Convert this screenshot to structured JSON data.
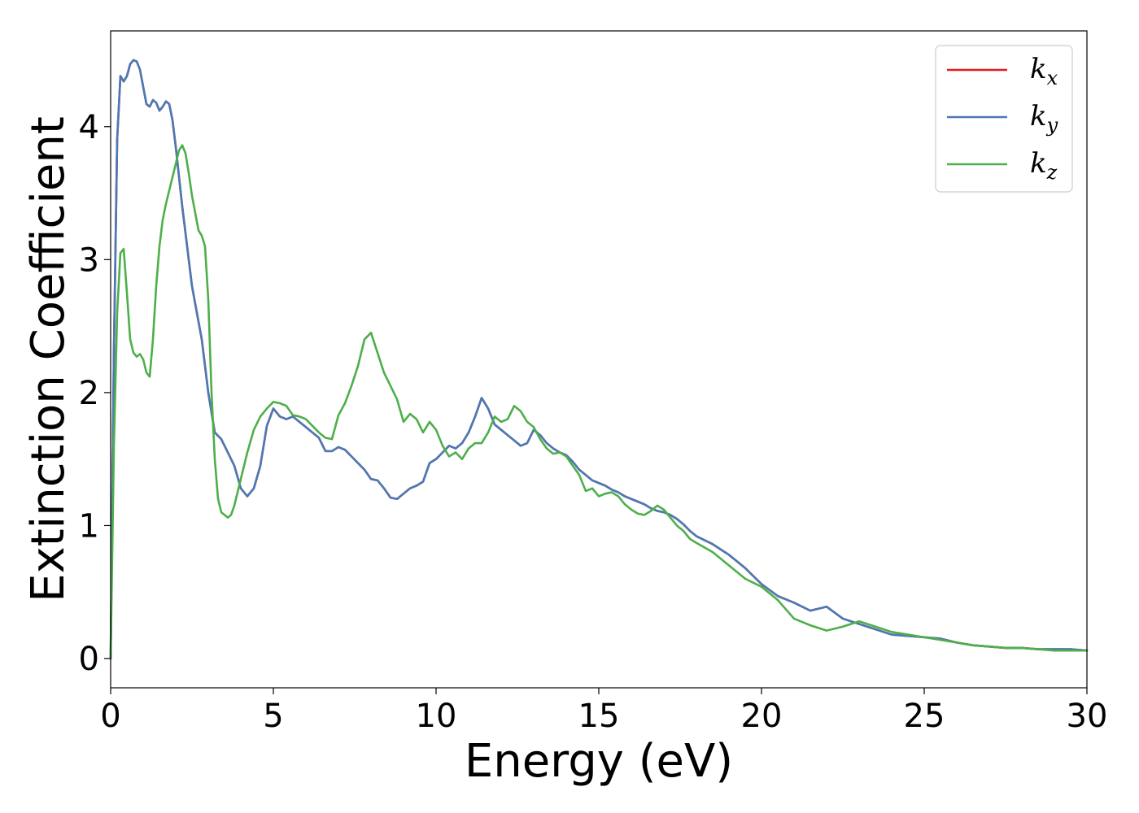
{
  "chart_data": {
    "type": "line",
    "xlabel": "Energy (eV)",
    "ylabel": "Extinction Coefficient",
    "xlim": [
      0,
      30
    ],
    "ylim": [
      -0.22,
      4.72
    ],
    "xticks": [
      0,
      5,
      10,
      15,
      20,
      25,
      30
    ],
    "xtick_labels": [
      "0",
      "5",
      "10",
      "15",
      "20",
      "25",
      "30"
    ],
    "yticks": [
      0,
      1,
      2,
      3,
      4
    ],
    "ytick_labels": [
      "0",
      "1",
      "2",
      "3",
      "4"
    ],
    "grid": false,
    "legend": "top-right",
    "series": [
      {
        "name": "kx",
        "label_main": "k",
        "label_sub": "x",
        "color": "#e41a1c",
        "x": [
          0,
          0.1,
          0.2,
          0.3,
          0.4,
          0.5,
          0.6,
          0.7,
          0.8,
          0.9,
          1.0,
          1.1,
          1.2,
          1.3,
          1.4,
          1.5,
          1.6,
          1.7,
          1.8,
          1.9,
          2.0,
          2.2,
          2.5,
          2.8,
          3.0,
          3.2,
          3.4,
          3.6,
          3.8,
          4.0,
          4.2,
          4.4,
          4.6,
          4.8,
          5.0,
          5.2,
          5.4,
          5.6,
          5.8,
          6.0,
          6.2,
          6.4,
          6.6,
          6.8,
          7.0,
          7.2,
          7.4,
          7.6,
          7.8,
          8.0,
          8.2,
          8.4,
          8.6,
          8.8,
          9.0,
          9.2,
          9.4,
          9.6,
          9.8,
          10.0,
          10.2,
          10.4,
          10.6,
          10.8,
          11.0,
          11.2,
          11.4,
          11.6,
          11.8,
          12.0,
          12.2,
          12.4,
          12.6,
          12.8,
          13.0,
          13.2,
          13.4,
          13.6,
          13.8,
          14.0,
          14.2,
          14.4,
          14.6,
          14.8,
          15.0,
          15.2,
          15.4,
          15.6,
          15.8,
          16.0,
          16.2,
          16.4,
          16.6,
          16.8,
          17.0,
          17.2,
          17.4,
          17.6,
          17.8,
          18.0,
          18.5,
          19.0,
          19.5,
          20.0,
          20.5,
          21.0,
          21.5,
          22.0,
          22.5,
          23.0,
          23.5,
          24.0,
          24.5,
          25.0,
          25.5,
          26.0,
          26.5,
          27.0,
          27.5,
          28.0,
          28.5,
          29.0,
          29.5,
          30.0
        ],
        "y": [
          0,
          2.3,
          3.9,
          4.38,
          4.34,
          4.38,
          4.47,
          4.5,
          4.49,
          4.43,
          4.3,
          4.17,
          4.15,
          4.2,
          4.18,
          4.12,
          4.15,
          4.19,
          4.17,
          4.05,
          3.85,
          3.4,
          2.8,
          2.4,
          2.0,
          1.7,
          1.65,
          1.55,
          1.45,
          1.28,
          1.22,
          1.28,
          1.45,
          1.75,
          1.88,
          1.82,
          1.8,
          1.82,
          1.78,
          1.74,
          1.7,
          1.66,
          1.56,
          1.56,
          1.59,
          1.57,
          1.52,
          1.47,
          1.42,
          1.35,
          1.34,
          1.28,
          1.21,
          1.2,
          1.24,
          1.28,
          1.3,
          1.33,
          1.47,
          1.5,
          1.55,
          1.6,
          1.58,
          1.62,
          1.7,
          1.82,
          1.96,
          1.88,
          1.76,
          1.72,
          1.68,
          1.64,
          1.6,
          1.62,
          1.72,
          1.68,
          1.62,
          1.58,
          1.55,
          1.53,
          1.48,
          1.42,
          1.38,
          1.34,
          1.32,
          1.3,
          1.27,
          1.25,
          1.22,
          1.2,
          1.18,
          1.16,
          1.13,
          1.11,
          1.1,
          1.08,
          1.05,
          1.01,
          0.96,
          0.92,
          0.86,
          0.78,
          0.68,
          0.56,
          0.47,
          0.42,
          0.36,
          0.39,
          0.3,
          0.26,
          0.22,
          0.18,
          0.17,
          0.16,
          0.15,
          0.12,
          0.1,
          0.09,
          0.08,
          0.08,
          0.07,
          0.07,
          0.07,
          0.06
        ]
      },
      {
        "name": "ky",
        "label_main": "k",
        "label_sub": "y",
        "color": "#4a7ab5",
        "x": [
          0,
          0.1,
          0.2,
          0.3,
          0.4,
          0.5,
          0.6,
          0.7,
          0.8,
          0.9,
          1.0,
          1.1,
          1.2,
          1.3,
          1.4,
          1.5,
          1.6,
          1.7,
          1.8,
          1.9,
          2.0,
          2.2,
          2.5,
          2.8,
          3.0,
          3.2,
          3.4,
          3.6,
          3.8,
          4.0,
          4.2,
          4.4,
          4.6,
          4.8,
          5.0,
          5.2,
          5.4,
          5.6,
          5.8,
          6.0,
          6.2,
          6.4,
          6.6,
          6.8,
          7.0,
          7.2,
          7.4,
          7.6,
          7.8,
          8.0,
          8.2,
          8.4,
          8.6,
          8.8,
          9.0,
          9.2,
          9.4,
          9.6,
          9.8,
          10.0,
          10.2,
          10.4,
          10.6,
          10.8,
          11.0,
          11.2,
          11.4,
          11.6,
          11.8,
          12.0,
          12.2,
          12.4,
          12.6,
          12.8,
          13.0,
          13.2,
          13.4,
          13.6,
          13.8,
          14.0,
          14.2,
          14.4,
          14.6,
          14.8,
          15.0,
          15.2,
          15.4,
          15.6,
          15.8,
          16.0,
          16.2,
          16.4,
          16.6,
          16.8,
          17.0,
          17.2,
          17.4,
          17.6,
          17.8,
          18.0,
          18.5,
          19.0,
          19.5,
          20.0,
          20.5,
          21.0,
          21.5,
          22.0,
          22.5,
          23.0,
          23.5,
          24.0,
          24.5,
          25.0,
          25.5,
          26.0,
          26.5,
          27.0,
          27.5,
          28.0,
          28.5,
          29.0,
          29.5,
          30.0
        ],
        "y": [
          0,
          2.3,
          3.9,
          4.38,
          4.34,
          4.38,
          4.47,
          4.5,
          4.49,
          4.43,
          4.3,
          4.17,
          4.15,
          4.2,
          4.18,
          4.12,
          4.15,
          4.19,
          4.17,
          4.05,
          3.85,
          3.4,
          2.8,
          2.4,
          2.0,
          1.7,
          1.65,
          1.55,
          1.45,
          1.28,
          1.22,
          1.28,
          1.45,
          1.75,
          1.88,
          1.82,
          1.8,
          1.82,
          1.78,
          1.74,
          1.7,
          1.66,
          1.56,
          1.56,
          1.59,
          1.57,
          1.52,
          1.47,
          1.42,
          1.35,
          1.34,
          1.28,
          1.21,
          1.2,
          1.24,
          1.28,
          1.3,
          1.33,
          1.47,
          1.5,
          1.55,
          1.6,
          1.58,
          1.62,
          1.7,
          1.82,
          1.96,
          1.88,
          1.76,
          1.72,
          1.68,
          1.64,
          1.6,
          1.62,
          1.72,
          1.68,
          1.62,
          1.58,
          1.55,
          1.53,
          1.48,
          1.42,
          1.38,
          1.34,
          1.32,
          1.3,
          1.27,
          1.25,
          1.22,
          1.2,
          1.18,
          1.16,
          1.13,
          1.11,
          1.1,
          1.08,
          1.05,
          1.01,
          0.96,
          0.92,
          0.86,
          0.78,
          0.68,
          0.56,
          0.47,
          0.42,
          0.36,
          0.39,
          0.3,
          0.26,
          0.22,
          0.18,
          0.17,
          0.16,
          0.15,
          0.12,
          0.1,
          0.09,
          0.08,
          0.08,
          0.07,
          0.07,
          0.07,
          0.06
        ]
      },
      {
        "name": "kz",
        "label_main": "k",
        "label_sub": "z",
        "color": "#4daf4a",
        "x": [
          0,
          0.1,
          0.2,
          0.3,
          0.4,
          0.5,
          0.6,
          0.7,
          0.8,
          0.9,
          1.0,
          1.1,
          1.2,
          1.3,
          1.4,
          1.5,
          1.6,
          1.7,
          1.8,
          1.9,
          2.0,
          2.1,
          2.2,
          2.3,
          2.4,
          2.5,
          2.6,
          2.7,
          2.8,
          2.9,
          3.0,
          3.1,
          3.2,
          3.3,
          3.4,
          3.5,
          3.6,
          3.7,
          3.8,
          4.0,
          4.2,
          4.4,
          4.6,
          4.8,
          5.0,
          5.2,
          5.4,
          5.6,
          5.8,
          6.0,
          6.2,
          6.4,
          6.6,
          6.8,
          7.0,
          7.2,
          7.4,
          7.6,
          7.8,
          8.0,
          8.2,
          8.4,
          8.6,
          8.8,
          9.0,
          9.2,
          9.4,
          9.6,
          9.8,
          10.0,
          10.2,
          10.4,
          10.6,
          10.8,
          11.0,
          11.2,
          11.4,
          11.6,
          11.8,
          12.0,
          12.2,
          12.4,
          12.6,
          12.8,
          13.0,
          13.2,
          13.4,
          13.6,
          13.8,
          14.0,
          14.2,
          14.4,
          14.6,
          14.8,
          15.0,
          15.2,
          15.4,
          15.6,
          15.8,
          16.0,
          16.2,
          16.4,
          16.6,
          16.8,
          17.0,
          17.2,
          17.4,
          17.6,
          17.8,
          18.0,
          18.5,
          19.0,
          19.5,
          20.0,
          20.5,
          21.0,
          21.5,
          22.0,
          22.5,
          23.0,
          23.5,
          24.0,
          24.5,
          25.0,
          25.5,
          26.0,
          26.5,
          27.0,
          27.5,
          28.0,
          28.5,
          29.0,
          29.5,
          30.0
        ],
        "y": [
          0,
          1.6,
          2.6,
          3.05,
          3.08,
          2.75,
          2.4,
          2.3,
          2.27,
          2.29,
          2.25,
          2.15,
          2.12,
          2.4,
          2.8,
          3.1,
          3.3,
          3.42,
          3.52,
          3.62,
          3.72,
          3.82,
          3.86,
          3.8,
          3.65,
          3.48,
          3.35,
          3.22,
          3.18,
          3.1,
          2.7,
          2.0,
          1.5,
          1.2,
          1.1,
          1.08,
          1.06,
          1.08,
          1.15,
          1.35,
          1.55,
          1.72,
          1.82,
          1.88,
          1.93,
          1.92,
          1.9,
          1.83,
          1.82,
          1.8,
          1.75,
          1.7,
          1.66,
          1.65,
          1.83,
          1.92,
          2.05,
          2.2,
          2.4,
          2.45,
          2.3,
          2.15,
          2.05,
          1.95,
          1.78,
          1.84,
          1.8,
          1.7,
          1.78,
          1.72,
          1.6,
          1.52,
          1.55,
          1.5,
          1.58,
          1.62,
          1.62,
          1.7,
          1.82,
          1.78,
          1.8,
          1.9,
          1.86,
          1.78,
          1.74,
          1.65,
          1.58,
          1.54,
          1.55,
          1.52,
          1.45,
          1.38,
          1.26,
          1.28,
          1.22,
          1.24,
          1.25,
          1.22,
          1.16,
          1.12,
          1.09,
          1.08,
          1.11,
          1.15,
          1.12,
          1.06,
          1.0,
          0.96,
          0.9,
          0.87,
          0.8,
          0.7,
          0.6,
          0.54,
          0.44,
          0.3,
          0.25,
          0.21,
          0.24,
          0.28,
          0.24,
          0.2,
          0.18,
          0.16,
          0.14,
          0.12,
          0.1,
          0.09,
          0.08,
          0.08,
          0.07,
          0.06,
          0.06,
          0.06
        ]
      }
    ]
  }
}
